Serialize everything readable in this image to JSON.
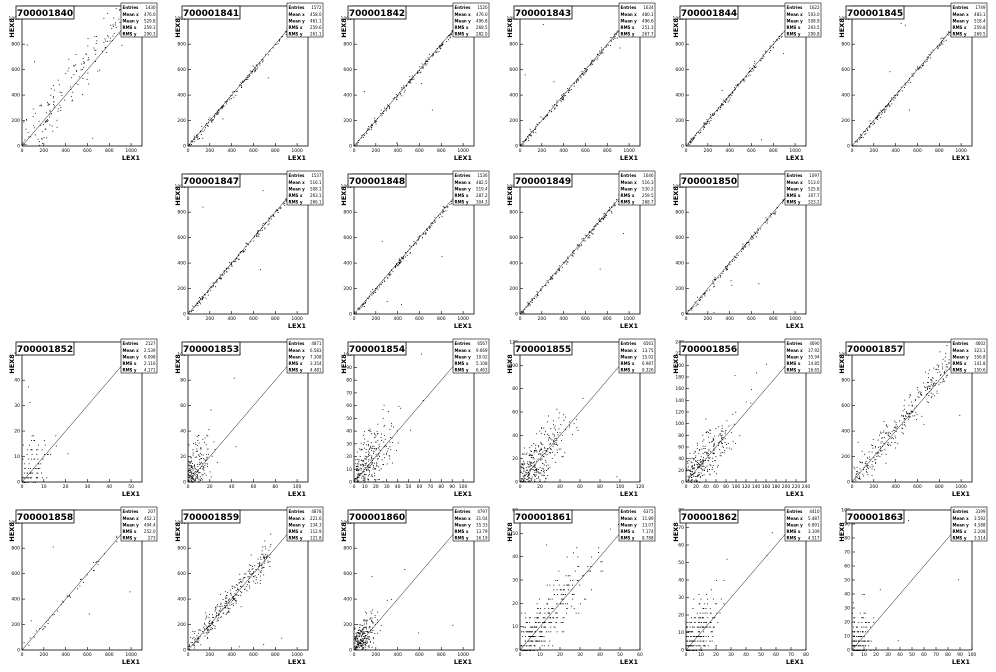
{
  "chart_data": [
    {
      "type": "scatter",
      "title": "700001840",
      "xlabel": "LEX1",
      "ylabel": "HEX8",
      "xlim": [
        0,
        1100
      ],
      "ylim": [
        0,
        1100
      ],
      "xticks": [
        "0",
        "200",
        "400",
        "600",
        "800",
        "1000"
      ],
      "yticks": [
        "0",
        "200",
        "400",
        "600",
        "800",
        "1000"
      ],
      "stats": {
        "Entries": "1430",
        "Mean x": "476.0",
        "Mean y": "529.8",
        "RMS x": "259.3",
        "RMS y": "290.3"
      },
      "density": 0.9,
      "spread": 0.09,
      "bias": 0.1,
      "extent": 0.95,
      "empty": false
    },
    {
      "type": "scatter",
      "title": "700001841",
      "xlabel": "LEX1",
      "ylabel": "HEX8",
      "xlim": [
        0,
        1100
      ],
      "ylim": [
        0,
        1100
      ],
      "xticks": [
        "0",
        "200",
        "400",
        "600",
        "800",
        "1000"
      ],
      "yticks": [
        "0",
        "200",
        "400",
        "600",
        "800",
        "1000"
      ],
      "stats": {
        "Entries": "1572",
        "Mean x": "458.0",
        "Mean y": "461.1",
        "RMS x": "259.6",
        "RMS y": "261.1"
      },
      "density": 0.8,
      "spread": 0.012,
      "bias": 0,
      "extent": 0.9,
      "empty": false
    },
    {
      "type": "scatter",
      "title": "700001842",
      "xlabel": "LEX1",
      "ylabel": "HEX8",
      "xlim": [
        0,
        1100
      ],
      "ylim": [
        0,
        1100
      ],
      "xticks": [
        "0",
        "200",
        "400",
        "600",
        "800",
        "1000"
      ],
      "yticks": [
        "0",
        "200",
        "400",
        "600",
        "800",
        "1000"
      ],
      "stats": {
        "Entries": "1520",
        "Mean x": "476.0",
        "Mean y": "496.8",
        "RMS x": "268.5",
        "RMS y": "282.0"
      },
      "density": 0.8,
      "spread": 0.012,
      "bias": 0,
      "extent": 0.92,
      "empty": false
    },
    {
      "type": "scatter",
      "title": "700001843",
      "xlabel": "LEX1",
      "ylabel": "HEX8",
      "xlim": [
        0,
        1100
      ],
      "ylim": [
        0,
        1100
      ],
      "xticks": [
        "0",
        "200",
        "400",
        "600",
        "800",
        "1000"
      ],
      "yticks": [
        "0",
        "200",
        "400",
        "600",
        "800",
        "1000"
      ],
      "stats": {
        "Entries": "1634",
        "Mean x": "480.1",
        "Mean y": "496.6",
        "RMS x": "251.3",
        "RMS y": "267.7"
      },
      "density": 0.8,
      "spread": 0.012,
      "bias": 0,
      "extent": 0.92,
      "empty": false
    },
    {
      "type": "scatter",
      "title": "700001844",
      "xlabel": "LEX1",
      "ylabel": "HEX8",
      "xlim": [
        0,
        1100
      ],
      "ylim": [
        0,
        1100
      ],
      "xticks": [
        "0",
        "200",
        "400",
        "600",
        "800",
        "1000"
      ],
      "yticks": [
        "0",
        "200",
        "400",
        "600",
        "800",
        "1000"
      ],
      "stats": {
        "Entries": "1622",
        "Mean x": "503.0",
        "Mean y": "508.9",
        "RMS x": "293.5",
        "RMS y": "299.8"
      },
      "density": 0.8,
      "spread": 0.012,
      "bias": 0,
      "extent": 0.94,
      "empty": false
    },
    {
      "type": "scatter",
      "title": "700001845",
      "xlabel": "LEX1",
      "ylabel": "HEX8",
      "xlim": [
        0,
        1100
      ],
      "ylim": [
        0,
        1100
      ],
      "xticks": [
        "0",
        "200",
        "400",
        "600",
        "800",
        "1000"
      ],
      "yticks": [
        "0",
        "200",
        "400",
        "600",
        "800",
        "1000"
      ],
      "stats": {
        "Entries": "1749",
        "Mean x": "483.1",
        "Mean y": "518.4",
        "RMS x": "259.8",
        "RMS y": "269.5"
      },
      "density": 0.8,
      "spread": 0.012,
      "bias": 0,
      "extent": 0.95,
      "empty": false
    },
    {
      "empty": true
    },
    {
      "type": "scatter",
      "title": "700001847",
      "xlabel": "LEX1",
      "ylabel": "HEX8",
      "xlim": [
        0,
        1100
      ],
      "ylim": [
        0,
        1100
      ],
      "xticks": [
        "0",
        "200",
        "400",
        "600",
        "800",
        "1000"
      ],
      "yticks": [
        "0",
        "200",
        "400",
        "600",
        "800",
        "1000"
      ],
      "stats": {
        "Entries": "1537",
        "Mean x": "516.1",
        "Mean y": "508.1",
        "RMS x": "263.1",
        "RMS y": "266.1"
      },
      "density": 0.8,
      "spread": 0.012,
      "bias": 0,
      "extent": 0.93,
      "empty": false
    },
    {
      "type": "scatter",
      "title": "700001848",
      "xlabel": "LEX1",
      "ylabel": "HEX8",
      "xlim": [
        0,
        1100
      ],
      "ylim": [
        0,
        1100
      ],
      "xticks": [
        "0",
        "200",
        "400",
        "600",
        "800",
        "1000"
      ],
      "yticks": [
        "0",
        "200",
        "400",
        "600",
        "800",
        "1000"
      ],
      "stats": {
        "Entries": "1536",
        "Mean x": "482.5",
        "Mean y": "519.4",
        "RMS x": "287.2",
        "RMS y": "304.3"
      },
      "density": 0.8,
      "spread": 0.012,
      "bias": 0,
      "extent": 0.93,
      "empty": false
    },
    {
      "type": "scatter",
      "title": "700001849",
      "xlabel": "LEX1",
      "ylabel": "HEX8",
      "xlim": [
        0,
        1100
      ],
      "ylim": [
        0,
        1100
      ],
      "xticks": [
        "0",
        "200",
        "400",
        "600",
        "800",
        "1000"
      ],
      "yticks": [
        "0",
        "200",
        "400",
        "600",
        "800",
        "1000"
      ],
      "stats": {
        "Entries": "1646",
        "Mean x": "516.3",
        "Mean y": "530.2",
        "RMS x": "259.5",
        "RMS y": "268.7"
      },
      "density": 0.8,
      "spread": 0.012,
      "bias": 0,
      "extent": 0.95,
      "empty": false
    },
    {
      "type": "scatter",
      "title": "700001850",
      "xlabel": "LEX1",
      "ylabel": "HEX8",
      "xlim": [
        0,
        1100
      ],
      "ylim": [
        0,
        1100
      ],
      "xticks": [
        "0",
        "200",
        "400",
        "600",
        "800",
        "1000"
      ],
      "yticks": [
        "0",
        "200",
        "400",
        "600",
        "800",
        "1000"
      ],
      "stats": {
        "Entries": "1097",
        "Mean x": "513.0",
        "Mean y": "525.8",
        "RMS x": "307.7",
        "RMS y": "323.2"
      },
      "density": 0.6,
      "spread": 0.012,
      "bias": 0,
      "extent": 0.88,
      "empty": false
    },
    {
      "empty": true
    },
    {
      "type": "scatter",
      "title": "700001852",
      "xlabel": "LEX1",
      "ylabel": "HEX8",
      "xlim": [
        0,
        55
      ],
      "ylim": [
        0,
        55
      ],
      "xticks": [
        "0",
        "10",
        "20",
        "30",
        "40",
        "50"
      ],
      "yticks": [
        "0",
        "10",
        "20",
        "30",
        "40",
        "50"
      ],
      "stats": {
        "Entries": "2127",
        "Mean x": "2.539",
        "Mean y": "6.098",
        "RMS x": "2.116",
        "RMS y": "4.171"
      },
      "density": 0.5,
      "spread": 0.3,
      "bias": 0,
      "extent": 0.18,
      "empty": false,
      "quantized": true
    },
    {
      "type": "scatter",
      "title": "700001853",
      "xlabel": "LEX1",
      "ylabel": "HEX8",
      "xlim": [
        0,
        110
      ],
      "ylim": [
        0,
        110
      ],
      "xticks": [
        "0",
        "20",
        "40",
        "60",
        "80",
        "100"
      ],
      "yticks": [
        "0",
        "20",
        "40",
        "60",
        "80",
        "100"
      ],
      "stats": {
        "Entries": "4871",
        "Mean x": "6.583",
        "Mean y": "7.308",
        "RMS x": "3.354",
        "RMS y": "4.481"
      },
      "density": 1.2,
      "spread": 0.3,
      "bias": 0,
      "extent": 0.17,
      "empty": false
    },
    {
      "type": "scatter",
      "title": "700001854",
      "xlabel": "LEX1",
      "ylabel": "HEX8",
      "xlim": [
        0,
        110
      ],
      "ylim": [
        0,
        110
      ],
      "xticks": [
        "0",
        "10",
        "20",
        "30",
        "40",
        "50",
        "60",
        "70",
        "80",
        "90",
        "100"
      ],
      "yticks": [
        "0",
        "10",
        "20",
        "30",
        "40",
        "50",
        "60",
        "70",
        "80",
        "90",
        "100"
      ],
      "stats": {
        "Entries": "6567",
        "Mean x": "9.669",
        "Mean y": "10.02",
        "RMS x": "5.108",
        "RMS y": "6.463"
      },
      "density": 1.5,
      "spread": 0.3,
      "bias": 0,
      "extent": 0.3,
      "empty": false
    },
    {
      "type": "scatter",
      "title": "700001855",
      "xlabel": "LEX1",
      "ylabel": "HEX8",
      "xlim": [
        0,
        120
      ],
      "ylim": [
        0,
        120
      ],
      "xticks": [
        "0",
        "20",
        "40",
        "60",
        "80",
        "100",
        "120"
      ],
      "yticks": [
        "0",
        "20",
        "40",
        "60",
        "80",
        "100",
        "120"
      ],
      "stats": {
        "Entries": "6561",
        "Mean x": "13.75",
        "Mean y": "15.02",
        "RMS x": "6.987",
        "RMS y": "9.326"
      },
      "density": 1.6,
      "spread": 0.3,
      "bias": 0,
      "extent": 0.38,
      "empty": false
    },
    {
      "type": "scatter",
      "title": "700001856",
      "xlabel": "LEX1",
      "ylabel": "HEX8",
      "xlim": [
        0,
        240
      ],
      "ylim": [
        0,
        240
      ],
      "xticks": [
        "0",
        "20",
        "40",
        "60",
        "80",
        "100",
        "120",
        "140",
        "160",
        "180",
        "200",
        "220",
        "240"
      ],
      "yticks": [
        "0",
        "20",
        "40",
        "60",
        "80",
        "100",
        "120",
        "140",
        "160",
        "180",
        "200",
        "220",
        "240"
      ],
      "stats": {
        "Entries": "4690",
        "Mean x": "37.92",
        "Mean y": "35.94",
        "RMS x": "14.85",
        "RMS y": "16.65"
      },
      "density": 1.4,
      "spread": 0.25,
      "bias": 0,
      "extent": 0.42,
      "empty": false
    },
    {
      "type": "scatter",
      "title": "700001857",
      "xlabel": "LEX1",
      "ylabel": "HEX8",
      "xlim": [
        0,
        1100
      ],
      "ylim": [
        0,
        1100
      ],
      "xticks": [
        "0",
        "200",
        "400",
        "600",
        "800",
        "1000"
      ],
      "yticks": [
        "0",
        "200",
        "400",
        "600",
        "800",
        "1000"
      ],
      "stats": {
        "Entries": "4602",
        "Mean x": "323.1",
        "Mean y": "356.8",
        "RMS x": "141.8",
        "RMS y": "150.6"
      },
      "density": 1.5,
      "spread": 0.06,
      "bias": 0.05,
      "extent": 0.88,
      "empty": false
    },
    {
      "type": "scatter",
      "title": "700001858",
      "xlabel": "LEX1",
      "ylabel": "HEX8",
      "xlim": [
        0,
        1100
      ],
      "ylim": [
        0,
        1100
      ],
      "xticks": [
        "0",
        "200",
        "400",
        "600",
        "800",
        "1000"
      ],
      "yticks": [
        "0",
        "200",
        "400",
        "600",
        "800",
        "1000"
      ],
      "stats": {
        "Entries": "207",
        "Mean x": "452.1",
        "Mean y": "494.4",
        "RMS x": "252.0",
        "RMS y": "273"
      },
      "density": 0.2,
      "spread": 0.02,
      "bias": 0,
      "extent": 0.95,
      "empty": false
    },
    {
      "type": "scatter",
      "title": "700001859",
      "xlabel": "LEX1",
      "ylabel": "HEX8",
      "xlim": [
        0,
        1100
      ],
      "ylim": [
        0,
        1100
      ],
      "xticks": [
        "0",
        "200",
        "400",
        "600",
        "800",
        "1000"
      ],
      "yticks": [
        "0",
        "200",
        "400",
        "600",
        "800",
        "1000"
      ],
      "stats": {
        "Entries": "4878",
        "Mean x": "221.6",
        "Mean y": "234.3",
        "RMS x": "112.9",
        "RMS y": "121.8"
      },
      "density": 1.5,
      "spread": 0.05,
      "bias": 0.02,
      "extent": 0.7,
      "empty": false
    },
    {
      "type": "scatter",
      "title": "700001860",
      "xlabel": "LEX1",
      "ylabel": "HEX8",
      "xlim": [
        0,
        1100
      ],
      "ylim": [
        0,
        1100
      ],
      "xticks": [
        "0",
        "200",
        "400",
        "600",
        "800",
        "1000"
      ],
      "yticks": [
        "0",
        "200",
        "400",
        "600",
        "800",
        "1000"
      ],
      "stats": {
        "Entries": "4797",
        "Mean x": "31.04",
        "Mean y": "35.33",
        "RMS x": "13.79",
        "RMS y": "16.19"
      },
      "density": 1.4,
      "spread": 0.2,
      "bias": 0,
      "extent": 0.18,
      "empty": false
    },
    {
      "type": "scatter",
      "title": "700001861",
      "xlabel": "LEX1",
      "ylabel": "HEX8",
      "xlim": [
        0,
        60
      ],
      "ylim": [
        0,
        60
      ],
      "xticks": [
        "0",
        "10",
        "20",
        "30",
        "40",
        "50",
        "60"
      ],
      "yticks": [
        "0",
        "10",
        "20",
        "30",
        "40",
        "50",
        "60"
      ],
      "stats": {
        "Entries": "6375",
        "Mean x": "11.89",
        "Mean y": "13.07",
        "RMS x": "7.174",
        "RMS y": "8.788"
      },
      "density": 1.6,
      "spread": 0.3,
      "bias": 0,
      "extent": 0.6,
      "empty": false,
      "quantized": true
    },
    {
      "type": "scatter",
      "title": "700001862",
      "xlabel": "LEX1",
      "ylabel": "HEX8",
      "xlim": [
        0,
        80
      ],
      "ylim": [
        0,
        80
      ],
      "xticks": [
        "0",
        "10",
        "20",
        "30",
        "40",
        "50",
        "60",
        "70",
        "80"
      ],
      "yticks": [
        "0",
        "10",
        "20",
        "30",
        "40",
        "50",
        "60",
        "70",
        "80"
      ],
      "stats": {
        "Entries": "4410",
        "Mean x": "5.487",
        "Mean y": "6.891",
        "RMS x": "3.109",
        "RMS y": "4.517"
      },
      "density": 1.2,
      "spread": 0.3,
      "bias": 0,
      "extent": 0.28,
      "empty": false,
      "quantized": true
    },
    {
      "type": "scatter",
      "title": "700001863",
      "xlabel": "LEX1",
      "ylabel": "HEX8",
      "xlim": [
        0,
        100
      ],
      "ylim": [
        0,
        100
      ],
      "xticks": [
        "0",
        "10",
        "20",
        "30",
        "40",
        "50",
        "60",
        "70",
        "80",
        "90",
        "100"
      ],
      "yticks": [
        "0",
        "10",
        "20",
        "30",
        "40",
        "50",
        "60",
        "70",
        "80",
        "90",
        "100"
      ],
      "stats": {
        "Entries": "3199",
        "Mean x": "3.592",
        "Mean y": "4.588",
        "RMS x": "2.208",
        "RMS y": "3.514"
      },
      "density": 0.9,
      "spread": 0.3,
      "bias": 0,
      "extent": 0.17,
      "empty": false,
      "quantized": true
    }
  ]
}
